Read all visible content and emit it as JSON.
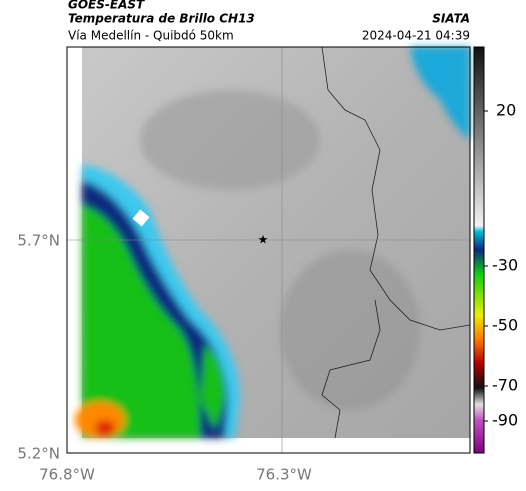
{
  "header": {
    "source": "GOES-EAST",
    "title": "Temperatura de Brillo CH13",
    "region": "Vía Medellín - Quibdó 50km",
    "brand": "SIATA",
    "timestamp": "2024-04-21 04:39"
  },
  "map": {
    "lat_labels": [
      "5.7°N",
      "5.2°N"
    ],
    "lon_labels": [
      "76.8°W",
      "76.3°W"
    ]
  },
  "colorbar": {
    "tick_labels": [
      "20",
      "-30",
      "-50",
      "-70",
      "-90"
    ]
  }
}
